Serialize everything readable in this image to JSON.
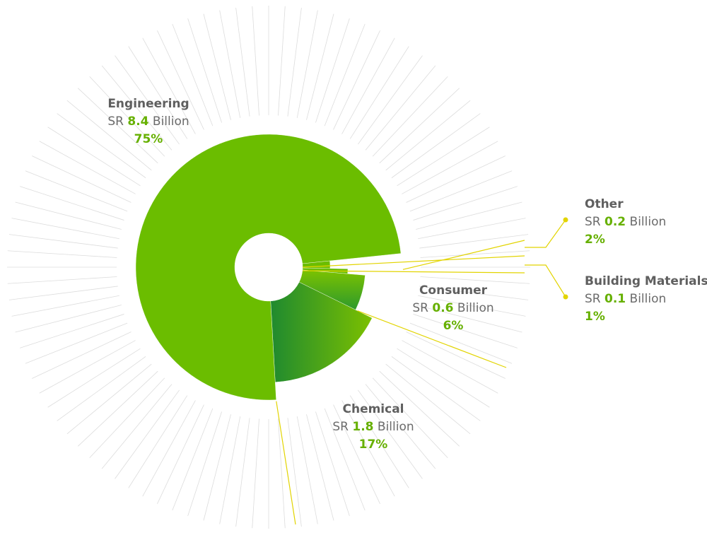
{
  "colors": {
    "main_green": "#6bbd00",
    "dark_green": "#1f8a2f",
    "value_green": "#66b000",
    "leader_yellow": "#e2d400",
    "ray_gray": "#dcdcdc",
    "label_gray": "#6b6b6b"
  },
  "chart_data": {
    "type": "pie",
    "style": "radial-segment",
    "unit_prefix": "SR",
    "unit_suffix": "Billion",
    "slices": [
      {
        "name": "Engineering",
        "value": 8.4,
        "percent": 75,
        "display_value": "8.4",
        "display_percent": "75%"
      },
      {
        "name": "Chemical",
        "value": 1.8,
        "percent": 17,
        "display_value": "1.8",
        "display_percent": "17%"
      },
      {
        "name": "Consumer",
        "value": 0.6,
        "percent": 6,
        "display_value": "0.6",
        "display_percent": "6%"
      },
      {
        "name": "Building Materials",
        "value": 0.1,
        "percent": 1,
        "display_value": "0.1",
        "display_percent": "1%"
      },
      {
        "name": "Other",
        "value": 0.2,
        "percent": 2,
        "display_value": "0.2",
        "display_percent": "2%"
      }
    ]
  }
}
